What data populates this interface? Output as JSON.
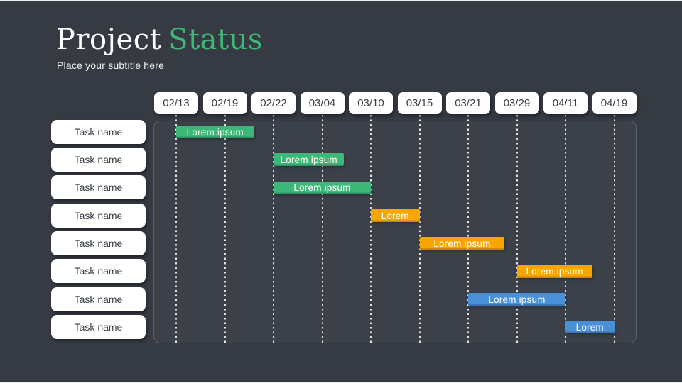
{
  "header": {
    "title_white": "Project",
    "title_accent": "Status",
    "subtitle": "Place your subtitle here"
  },
  "colors": {
    "background": "#363a42",
    "panel_fill": "#3b4049",
    "panel_border": "#5b6069",
    "title_accent": "#3eb877",
    "box_fill": "#ffffff",
    "box_text": "#3a3e47",
    "green": "#3eb878",
    "orange": "#f9a602",
    "blue": "#4a90d9"
  },
  "chart_data": {
    "type": "gantt",
    "title": "Project Status",
    "columns": [
      "02/13",
      "02/19",
      "02/22",
      "03/04",
      "03/10",
      "03/15",
      "03/21",
      "03/29",
      "04/11",
      "04/19"
    ],
    "legend_position": "none",
    "grid": "dotted-vertical",
    "rows": [
      {
        "task": "Task name",
        "bar": {
          "label": "Lorem ipsum",
          "color": "green",
          "start": 0,
          "end": 1.6
        }
      },
      {
        "task": "Task name",
        "bar": {
          "label": "Lorem ipsum",
          "color": "green",
          "start": 2,
          "end": 3.45
        }
      },
      {
        "task": "Task name",
        "bar": {
          "label": "Lorem ipsum",
          "color": "green",
          "start": 2,
          "end": 4
        }
      },
      {
        "task": "Task name",
        "bar": {
          "label": "Lorem",
          "color": "orange",
          "start": 4,
          "end": 5
        }
      },
      {
        "task": "Task name",
        "bar": {
          "label": "Lorem ipsum",
          "color": "orange",
          "start": 5,
          "end": 6.75
        }
      },
      {
        "task": "Task name",
        "bar": {
          "label": "Lorem ipsum",
          "color": "orange",
          "start": 7,
          "end": 8.55
        }
      },
      {
        "task": "Task name",
        "bar": {
          "label": "Lorem ipsum",
          "color": "blue",
          "start": 6,
          "end": 8
        }
      },
      {
        "task": "Task name",
        "bar": {
          "label": "Lorem",
          "color": "blue",
          "start": 8,
          "end": 9
        }
      }
    ]
  }
}
